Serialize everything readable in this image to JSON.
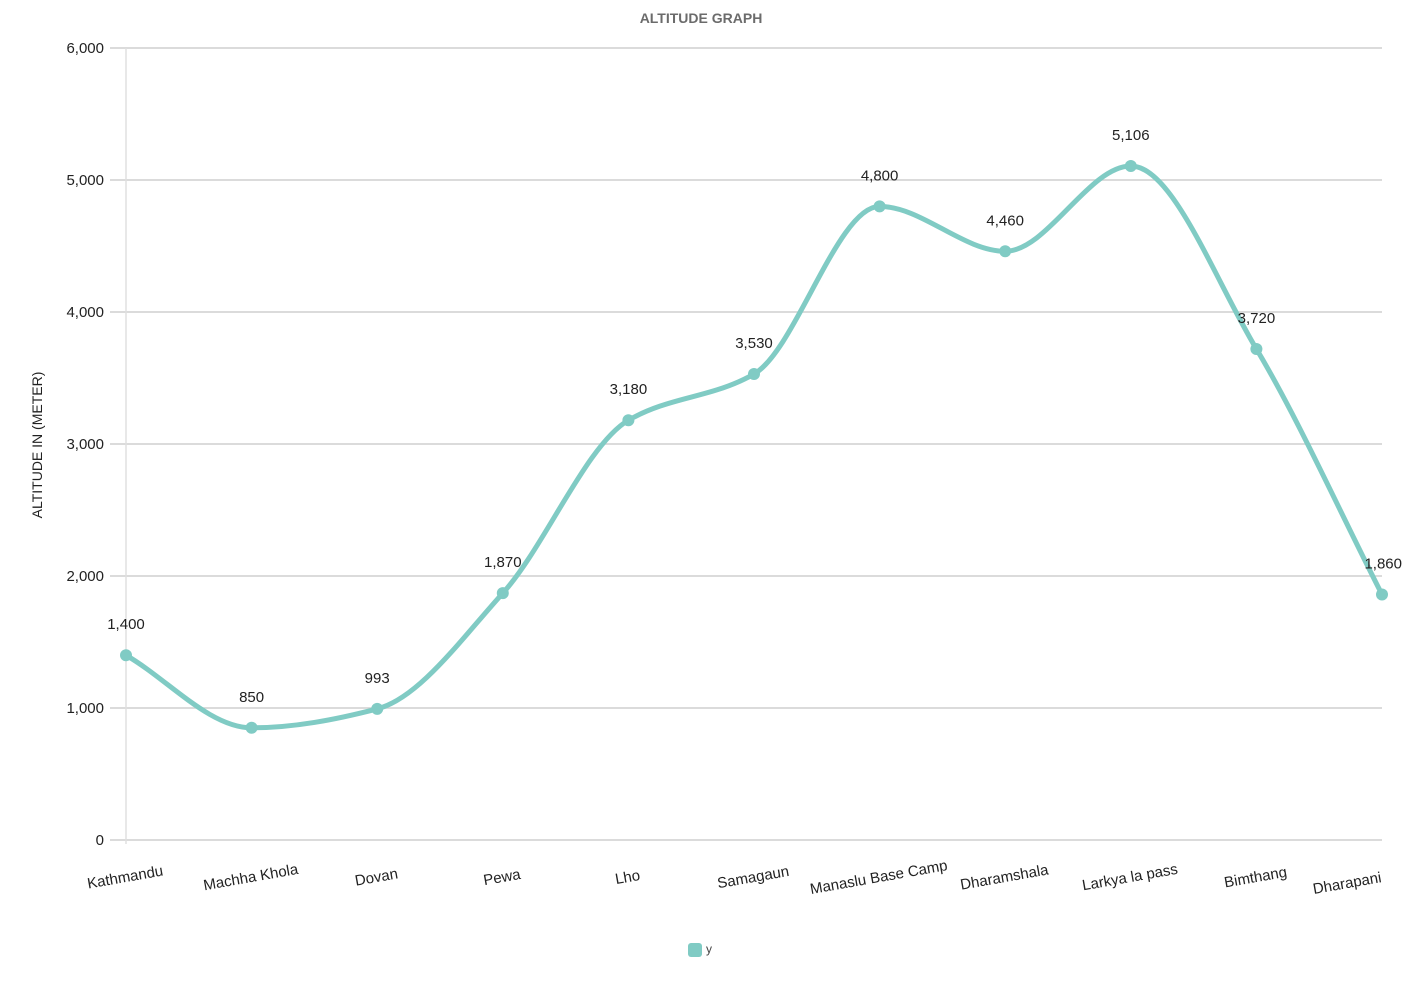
{
  "chart_data": {
    "type": "line",
    "title": "ALTITUDE GRAPH",
    "xlabel": "",
    "ylabel": "ALTITUDE IN (METER)",
    "ylim": [
      0,
      6000
    ],
    "yticks": [
      0,
      1000,
      2000,
      3000,
      4000,
      5000,
      6000
    ],
    "ytick_labels": [
      "0",
      "1,000",
      "2,000",
      "3,000",
      "4,000",
      "5,000",
      "6,000"
    ],
    "grid": true,
    "legend": "bottom-center",
    "categories": [
      "Kathmandu",
      "Machha Khola",
      "Dovan",
      "Pewa",
      "Lho",
      "Samagaun",
      "Manaslu Base Camp",
      "Dharamshala",
      "Larkya la pass",
      "Bimthang",
      "Dharapani"
    ],
    "series": [
      {
        "name": "y",
        "color": "#80cbc4",
        "values": [
          1400,
          850,
          993,
          1870,
          3180,
          3530,
          4800,
          4460,
          5106,
          3720,
          1860
        ],
        "labels": [
          "1,400",
          "850",
          "993",
          "1,870",
          "3,180",
          "3,530",
          "4,800",
          "4,460",
          "5,106",
          "3,720",
          "1,860"
        ]
      }
    ]
  }
}
